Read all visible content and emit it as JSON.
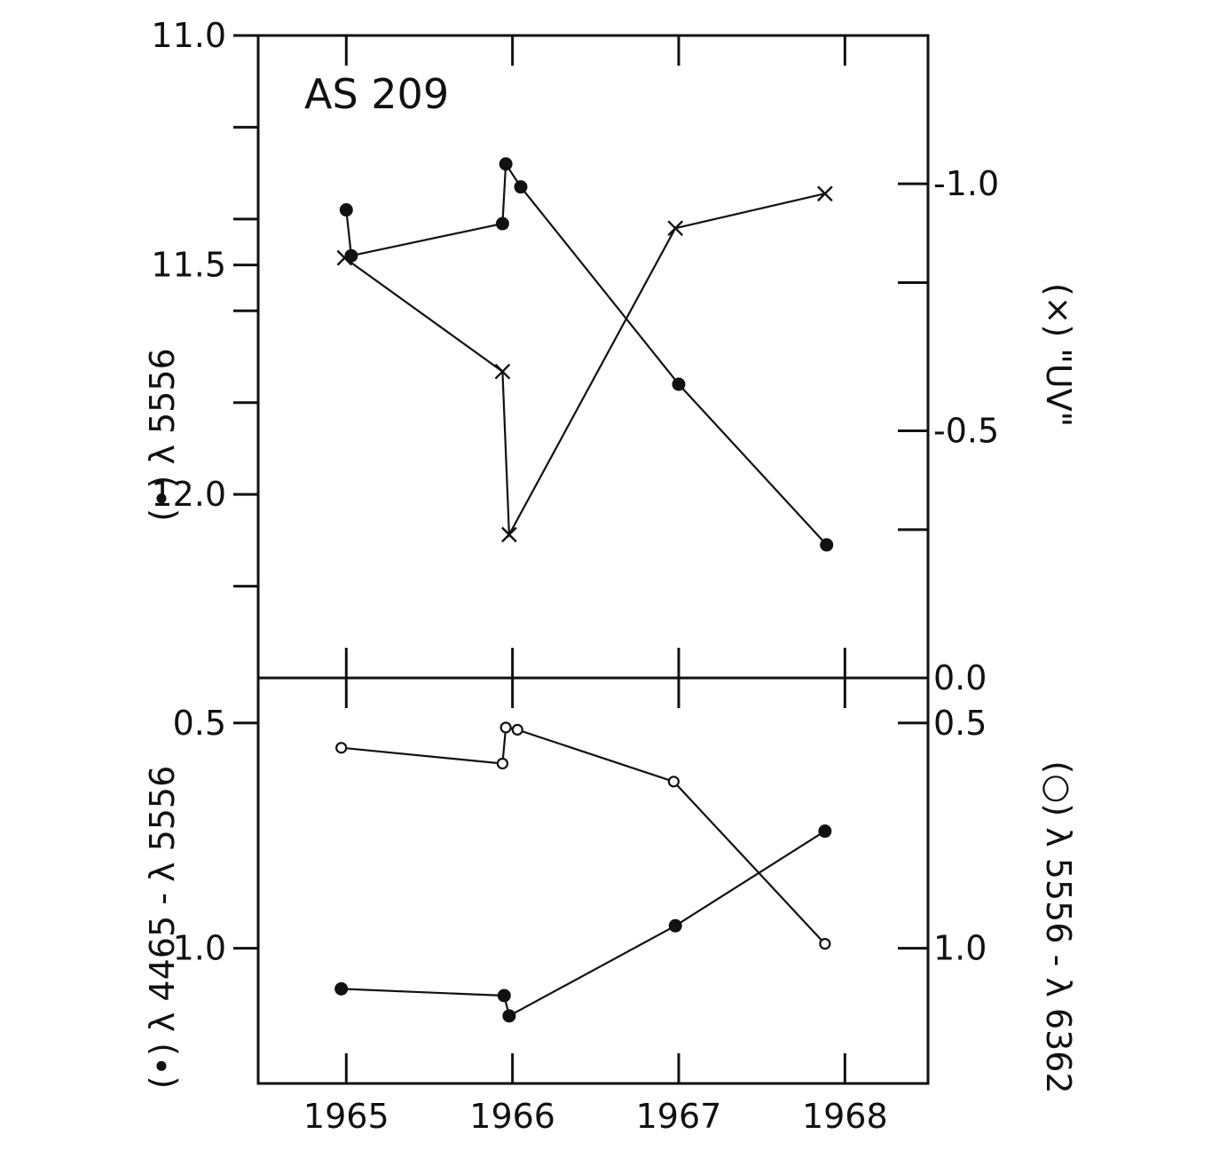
{
  "chart_data": [
    {
      "panel": "top",
      "type": "line",
      "annotation": "AS 209",
      "x_ticks": [
        1965,
        1966,
        1967,
        1968
      ],
      "x_tick_labels": [],
      "xlim": [
        1964.47,
        1968.5
      ],
      "left_axis": {
        "label": "(•) λ 5556",
        "ylim": [
          11.0,
          12.4
        ],
        "inverted": true,
        "ticks": [
          11.0,
          11.2,
          11.4,
          11.5,
          11.6,
          11.8,
          12.0,
          12.2
        ],
        "tick_labels": [
          {
            "value": 11.0,
            "text": "11.0"
          },
          {
            "value": 11.5,
            "text": "11.5"
          },
          {
            "value": 12.0,
            "text": "12.0"
          }
        ]
      },
      "right_axis": {
        "label": "(×) \"UV\"",
        "ylim": [
          -1.3,
          0.0
        ],
        "inverted": true,
        "ticks": [
          -1.0,
          -0.8,
          -0.5,
          -0.3,
          0.0
        ],
        "tick_labels": [
          {
            "value": -1.0,
            "text": "-1.0"
          },
          {
            "value": -0.5,
            "text": "-0.5"
          },
          {
            "value": 0.0,
            "text": "0.0"
          }
        ]
      },
      "series": [
        {
          "axis": "left",
          "marker": "filled-circle",
          "x": [
            1965.0,
            1965.03,
            1965.94,
            1965.96,
            1966.05,
            1967.0,
            1967.89
          ],
          "y": [
            11.38,
            11.48,
            11.41,
            11.28,
            11.33,
            11.76,
            12.11
          ]
        },
        {
          "axis": "right",
          "marker": "cross",
          "x": [
            1964.99,
            1965.94,
            1965.98,
            1966.98,
            1967.88
          ],
          "y": [
            -0.85,
            -0.62,
            -0.29,
            -0.91,
            -0.98
          ]
        }
      ]
    },
    {
      "panel": "bottom",
      "type": "line",
      "x_ticks": [
        1965,
        1966,
        1967,
        1968
      ],
      "x_tick_labels": [
        "1965",
        "1966",
        "1967",
        "1968"
      ],
      "xlim": [
        1964.47,
        1968.5
      ],
      "left_axis": {
        "label": "(•) λ 4465 - λ 5556",
        "ylim": [
          0.4,
          1.3
        ],
        "inverted": true,
        "ticks": [
          0.5,
          1.0
        ],
        "tick_labels": [
          {
            "value": 0.5,
            "text": "0.5"
          },
          {
            "value": 1.0,
            "text": "1.0"
          }
        ]
      },
      "right_axis": {
        "label": "(○) λ 5556 - λ 6362",
        "ylim": [
          0.4,
          1.3
        ],
        "inverted": true,
        "ticks": [
          0.5,
          1.0
        ],
        "tick_labels": [
          {
            "value": 0.5,
            "text": "0.5"
          },
          {
            "value": 1.0,
            "text": "1.0"
          }
        ]
      },
      "series": [
        {
          "axis": "left",
          "marker": "filled-circle",
          "x": [
            1964.97,
            1965.95,
            1965.98,
            1966.98,
            1967.88
          ],
          "y": [
            1.09,
            1.105,
            1.15,
            0.95,
            0.74
          ]
        },
        {
          "axis": "right",
          "marker": "open-circle",
          "x": [
            1964.97,
            1965.94,
            1965.96,
            1966.03,
            1966.97,
            1967.88
          ],
          "y": [
            0.555,
            0.59,
            0.51,
            0.515,
            0.63,
            0.99
          ]
        }
      ]
    }
  ]
}
